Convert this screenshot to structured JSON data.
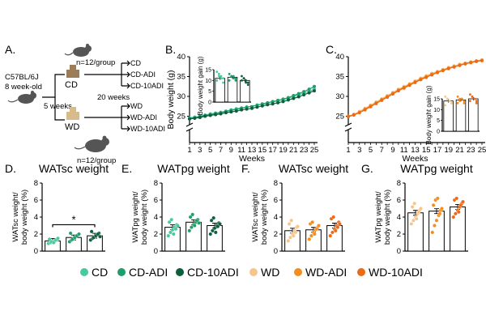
{
  "colors": {
    "CD": "#48c9a0",
    "CD-ADI": "#1e9e6a",
    "CD-10ADI": "#0e5e3c",
    "WD": "#f5c68c",
    "WD-ADI": "#f28d1e",
    "WD-10ADI": "#ec6a16",
    "mouse": "#555555",
    "food_cd": "#9c7d5a",
    "food_wd": "#d7bb8a"
  },
  "panelA": {
    "label": "A.",
    "strain": "C57BL/6J",
    "age": "8 week-old",
    "n_top": "n=12/group",
    "n_bottom": "n=12/group",
    "diet_cd": "CD",
    "diet_wd": "WD",
    "weeks_1": "5 weeks",
    "weeks_2": "20 weeks",
    "groups_cd": [
      "CD",
      "CD-ADI",
      "CD-10ADI"
    ],
    "groups_wd": [
      "WD",
      "WD-ADI",
      "WD-10ADI"
    ]
  },
  "legend": {
    "items": [
      {
        "label": "CD",
        "color": "#48c9a0"
      },
      {
        "label": "CD-ADI",
        "color": "#1e9e6a"
      },
      {
        "label": "CD-10ADI",
        "color": "#0e5e3c"
      },
      {
        "label": "WD",
        "color": "#f5c68c"
      },
      {
        "label": "WD-ADI",
        "color": "#f28d1e"
      },
      {
        "label": "WD-10ADI",
        "color": "#ec6a16"
      }
    ]
  },
  "chart_data": [
    {
      "panel": "B.",
      "type": "line",
      "xlabel": "Weeks",
      "ylabel": "Body weight (g)",
      "x": [
        1,
        2,
        3,
        4,
        5,
        6,
        7,
        8,
        9,
        10,
        11,
        12,
        13,
        14,
        15,
        16,
        17,
        18,
        19,
        20,
        21,
        22,
        23,
        24,
        25
      ],
      "xticks": [
        "1",
        "3",
        "5",
        "7",
        "9",
        "11",
        "13",
        "15",
        "17",
        "19",
        "21",
        "23",
        "25"
      ],
      "yticks": [
        "25",
        "30",
        "35",
        "40"
      ],
      "ylim": [
        20,
        40
      ],
      "series": [
        {
          "name": "CD",
          "values": [
            24.6,
            24.8,
            25.0,
            25.3,
            25.6,
            25.8,
            26.0,
            26.3,
            26.6,
            26.9,
            27.1,
            27.3,
            27.5,
            27.8,
            28.0,
            28.3,
            28.6,
            28.9,
            29.2,
            29.6,
            30.0,
            30.4,
            30.8,
            31.3,
            31.8
          ]
        },
        {
          "name": "CD-ADI",
          "values": [
            24.4,
            24.6,
            24.9,
            25.2,
            25.4,
            25.7,
            25.9,
            26.2,
            26.5,
            26.7,
            27.0,
            27.3,
            27.5,
            27.8,
            28.1,
            28.4,
            28.7,
            29.0,
            29.3,
            29.7,
            30.2,
            30.7,
            31.2,
            31.8,
            32.5
          ]
        },
        {
          "name": "CD-10ADI",
          "values": [
            24.3,
            24.5,
            24.7,
            25.0,
            25.2,
            25.4,
            25.6,
            25.9,
            26.1,
            26.3,
            26.6,
            26.8,
            27.0,
            27.3,
            27.6,
            27.9,
            28.1,
            28.4,
            28.7,
            29.1,
            29.5,
            29.9,
            30.4,
            30.9,
            31.4
          ]
        }
      ],
      "inset": {
        "ylabel": "Body weight gain (g)",
        "yticks": [
          "0",
          "5",
          "10",
          "15"
        ],
        "ylim": [
          0,
          15
        ],
        "categories": [
          "CD",
          "CD-ADI",
          "CD-10ADI"
        ],
        "values": [
          11,
          11.5,
          10
        ],
        "points": [
          [
            14,
            13,
            12,
            11,
            10,
            12,
            11,
            9
          ],
          [
            13,
            12,
            12,
            11,
            10,
            12,
            11,
            10
          ],
          [
            12,
            11,
            10,
            9,
            10,
            11,
            9,
            8
          ]
        ]
      }
    },
    {
      "panel": "C.",
      "type": "line",
      "xlabel": "Weeks",
      "ylabel": "",
      "x": [
        1,
        2,
        3,
        4,
        5,
        6,
        7,
        8,
        9,
        10,
        11,
        12,
        13,
        14,
        15,
        16,
        17,
        18,
        19,
        20,
        21,
        22,
        23,
        24,
        25
      ],
      "xticks": [
        "1",
        "3",
        "5",
        "7",
        "9",
        "11",
        "13",
        "15",
        "17",
        "19",
        "21",
        "23",
        "25"
      ],
      "yticks": [
        "25",
        "30",
        "35",
        "40"
      ],
      "ylim": [
        20,
        40
      ],
      "series": [
        {
          "name": "WD",
          "values": [
            25.0,
            25.5,
            26.2,
            27.0,
            27.8,
            28.6,
            29.4,
            30.2,
            31.0,
            31.8,
            32.5,
            33.2,
            33.9,
            34.6,
            35.2,
            35.8,
            36.3,
            36.8,
            37.3,
            37.7,
            38.1,
            38.4,
            38.7,
            39.0,
            39.2
          ]
        },
        {
          "name": "WD-ADI",
          "values": [
            25.0,
            25.4,
            26.0,
            26.8,
            27.6,
            28.4,
            29.2,
            30.0,
            30.8,
            31.6,
            32.3,
            33.0,
            33.7,
            34.4,
            35.0,
            35.6,
            36.1,
            36.6,
            37.1,
            37.5,
            37.9,
            38.3,
            38.6,
            38.9,
            39.1
          ]
        },
        {
          "name": "WD-10ADI",
          "values": [
            24.9,
            25.3,
            25.9,
            26.6,
            27.4,
            28.2,
            29.0,
            29.8,
            30.6,
            31.4,
            32.1,
            32.8,
            33.5,
            34.2,
            34.8,
            35.4,
            36.0,
            36.5,
            37.0,
            37.4,
            37.8,
            38.2,
            38.5,
            38.8,
            39.0
          ]
        }
      ],
      "inset": {
        "ylabel": "Body weight gain (g)",
        "yticks": [
          "0",
          "5",
          "10",
          "15"
        ],
        "ylim": [
          0,
          15
        ],
        "categories": [
          "WD",
          "WD-ADI",
          "WD-10ADI"
        ],
        "values": [
          14,
          14.5,
          15
        ],
        "points": [
          [
            16,
            15,
            14,
            13,
            12,
            15,
            14,
            13
          ],
          [
            16,
            15,
            15,
            14,
            13,
            14,
            15,
            13
          ],
          [
            17,
            16,
            15,
            14,
            14,
            16,
            15,
            13
          ]
        ]
      }
    },
    {
      "panel": "D.",
      "type": "bar",
      "title": "WATsc weight",
      "ylabel": "WATsc weight/ body weight (%)",
      "yticks": [
        "0",
        "2",
        "4",
        "6",
        "8"
      ],
      "ylim": [
        0,
        8
      ],
      "categories": [
        "CD",
        "CD-ADI",
        "CD-10ADI"
      ],
      "values": [
        1.2,
        1.6,
        1.8
      ],
      "points": [
        [
          0.9,
          1.0,
          1.1,
          1.2,
          1.3,
          1.4,
          1.1,
          1.0,
          1.3,
          1.5
        ],
        [
          1.1,
          1.3,
          1.5,
          1.7,
          1.9,
          2.1,
          1.4,
          1.6,
          1.8,
          2.0
        ],
        [
          1.3,
          1.5,
          1.7,
          1.9,
          2.1,
          2.3,
          1.6,
          1.8,
          2.0,
          1.7
        ]
      ],
      "significance": "*"
    },
    {
      "panel": "E.",
      "type": "bar",
      "title": "WATpg weight",
      "ylabel": "WATpg weight/ body weight (%)",
      "yticks": [
        "0",
        "2",
        "4",
        "6",
        "8"
      ],
      "ylim": [
        0,
        8
      ],
      "categories": [
        "CD",
        "CD-ADI",
        "CD-10ADI"
      ],
      "values": [
        2.8,
        3.4,
        3.0
      ],
      "points": [
        [
          1.8,
          2.2,
          2.5,
          2.8,
          3.1,
          3.4,
          3.7,
          2.0,
          2.6,
          3.0
        ],
        [
          2.4,
          2.8,
          3.1,
          3.4,
          3.7,
          4.0,
          4.3,
          3.0,
          3.6,
          3.3
        ],
        [
          2.0,
          2.4,
          2.7,
          3.0,
          3.3,
          3.6,
          3.9,
          2.2,
          2.9,
          3.2
        ]
      ]
    },
    {
      "panel": "F.",
      "type": "bar",
      "title": "WATsc weight",
      "ylabel": "WATsc weight/ body weight (%)",
      "yticks": [
        "0",
        "2",
        "4",
        "6",
        "8"
      ],
      "ylim": [
        0,
        8
      ],
      "categories": [
        "WD",
        "WD-ADI",
        "WD-10ADI"
      ],
      "values": [
        2.4,
        2.5,
        3.0
      ],
      "points": [
        [
          1.2,
          1.6,
          2.0,
          2.4,
          2.8,
          3.2,
          3.6,
          1.8,
          2.2,
          2.9
        ],
        [
          1.4,
          1.8,
          2.2,
          2.5,
          2.8,
          3.2,
          3.4,
          2.0,
          2.6,
          3.0
        ],
        [
          1.8,
          2.2,
          2.6,
          3.0,
          3.4,
          3.8,
          4.0,
          2.4,
          2.8,
          3.2
        ]
      ]
    },
    {
      "panel": "G.",
      "type": "bar",
      "title": "WATpg weight",
      "ylabel": "WATpg weight/ body weight (%)",
      "yticks": [
        "0",
        "2",
        "4",
        "6",
        "8"
      ],
      "ylim": [
        0,
        8
      ],
      "categories": [
        "WD",
        "WD-ADI",
        "WD-10ADI"
      ],
      "values": [
        4.5,
        4.7,
        5.2
      ],
      "points": [
        [
          3.2,
          3.6,
          4.0,
          4.4,
          4.8,
          5.2,
          5.6,
          3.8,
          4.6,
          5.0
        ],
        [
          2.2,
          3.0,
          3.6,
          4.2,
          4.8,
          5.4,
          6.0,
          6.2,
          4.4,
          5.0
        ],
        [
          4.0,
          4.4,
          4.8,
          5.2,
          5.6,
          6.0,
          6.2,
          4.6,
          5.4,
          5.8
        ]
      ]
    }
  ]
}
